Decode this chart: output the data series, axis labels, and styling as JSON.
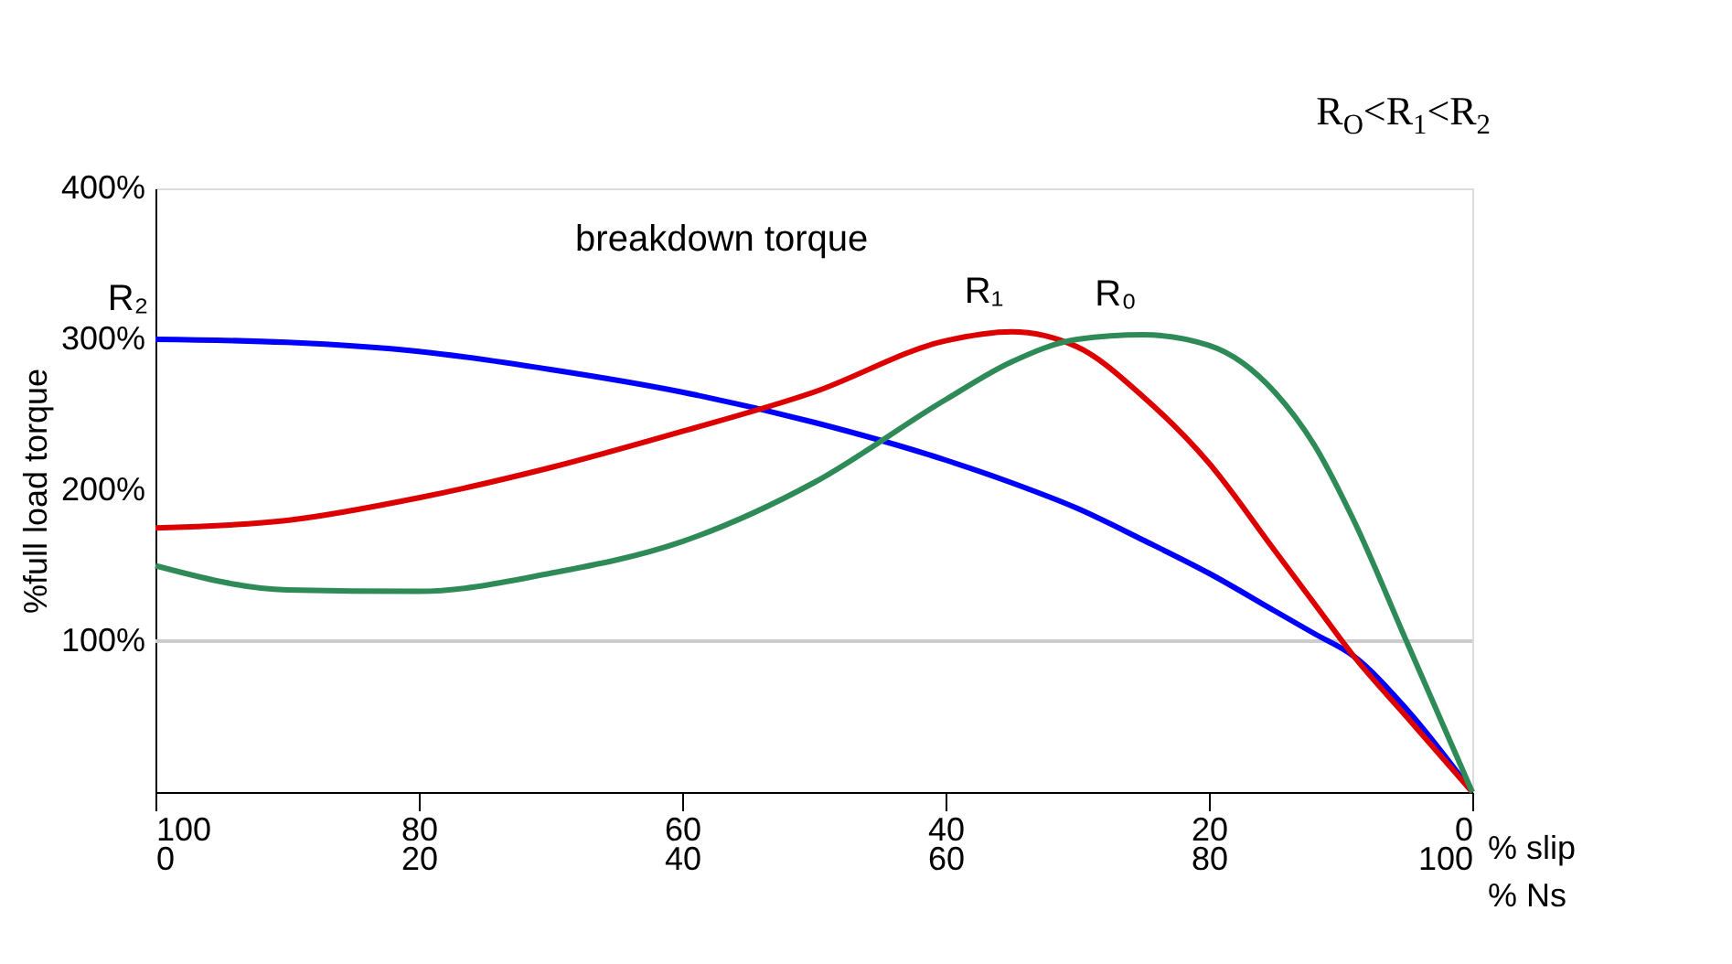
{
  "chart_data": {
    "type": "line",
    "title": "R$_{O}$<R$_{1}$<R$_{2}$",
    "xlabel": "% slip",
    "x2label": "% Ns",
    "ylabel": "%full load torque",
    "xlim": [
      100,
      0
    ],
    "xticks": [
      100,
      80,
      60,
      40,
      20,
      0
    ],
    "x2lim": [
      0,
      100
    ],
    "x2ticks": [
      0,
      20,
      40,
      60,
      80,
      100
    ],
    "ylim": [
      0,
      400
    ],
    "yticks": [
      {
        "value": 100,
        "label": "100%"
      },
      {
        "value": 200,
        "label": "200%"
      },
      {
        "value": 300,
        "label": "300%"
      },
      {
        "value": 400,
        "label": "400%"
      }
    ],
    "x": [
      100,
      90,
      80,
      70,
      60,
      50,
      40,
      35,
      30,
      25,
      20,
      15,
      12,
      9,
      5,
      0
    ],
    "series": [
      {
        "name": "R₂",
        "color": "#0000ff",
        "values": [
          300,
          298,
          292,
          280,
          265,
          245,
          220,
          205,
          188,
          167,
          145,
          120,
          105,
          90,
          55,
          0
        ]
      },
      {
        "name": "R₁",
        "color": "#dd0000",
        "values": [
          175,
          180,
          195,
          215,
          239,
          265,
          299,
          305,
          295,
          262,
          218,
          160,
          125,
          90,
          50,
          0
        ]
      },
      {
        "name": "R₀",
        "color": "#2e8b57",
        "values": [
          150,
          134,
          133,
          145,
          166,
          205,
          260,
          285,
          300,
          303,
          296,
          265,
          230,
          180,
          100,
          0
        ]
      }
    ],
    "annotations": [
      "breakdown torque"
    ],
    "ref_lines": [
      {
        "axis": "y",
        "value": 100,
        "color": "#cccccc"
      }
    ],
    "grid": false,
    "marker": "none",
    "line_style": "solid"
  }
}
